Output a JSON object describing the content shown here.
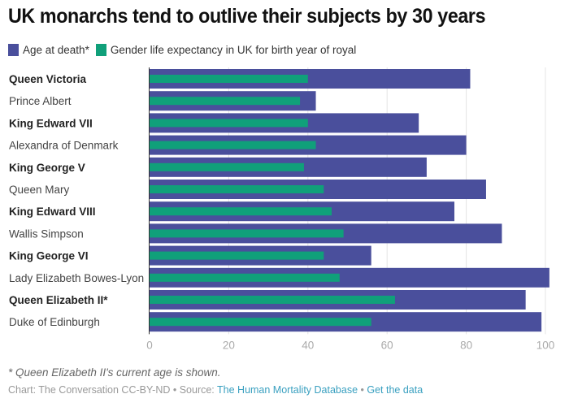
{
  "chart_data": {
    "type": "bar",
    "orientation": "horizontal",
    "title": "UK monarchs tend to outlive their subjects by 30 years",
    "xlabel": "",
    "ylabel": "",
    "xlim": [
      0,
      100
    ],
    "xticks": [
      0,
      20,
      40,
      60,
      80,
      100
    ],
    "grid": true,
    "legend_position": "top-left",
    "categories": [
      "Queen Victoria",
      "Prince Albert",
      "King Edward VII",
      "Alexandra of Denmark",
      "King George V",
      "Queen Mary",
      "King Edward VIII",
      "Wallis Simpson",
      "King George VI",
      "Lady Elizabeth Bowes-Lyon",
      "Queen Elizabeth II*",
      "Duke of Edinburgh"
    ],
    "bold_categories": [
      true,
      false,
      true,
      false,
      true,
      false,
      true,
      false,
      true,
      false,
      true,
      false
    ],
    "series": [
      {
        "name": "Age at death*",
        "color": "#4a4f9c",
        "values": [
          81,
          42,
          68,
          80,
          70,
          85,
          77,
          89,
          56,
          101,
          95,
          99
        ]
      },
      {
        "name": "Gender life expectancy in UK for birth year of royal",
        "color": "#10a07a",
        "values": [
          40,
          38,
          40,
          42,
          39,
          44,
          46,
          49,
          44,
          48,
          62,
          56
        ]
      }
    ]
  },
  "footer": {
    "note": "* Queen Elizabeth II's current age is shown.",
    "credit_prefix": "Chart: The Conversation CC-BY-ND • Source: ",
    "source_link": "The Human Mortality Database",
    "separator": " • ",
    "data_link": "Get the data"
  }
}
